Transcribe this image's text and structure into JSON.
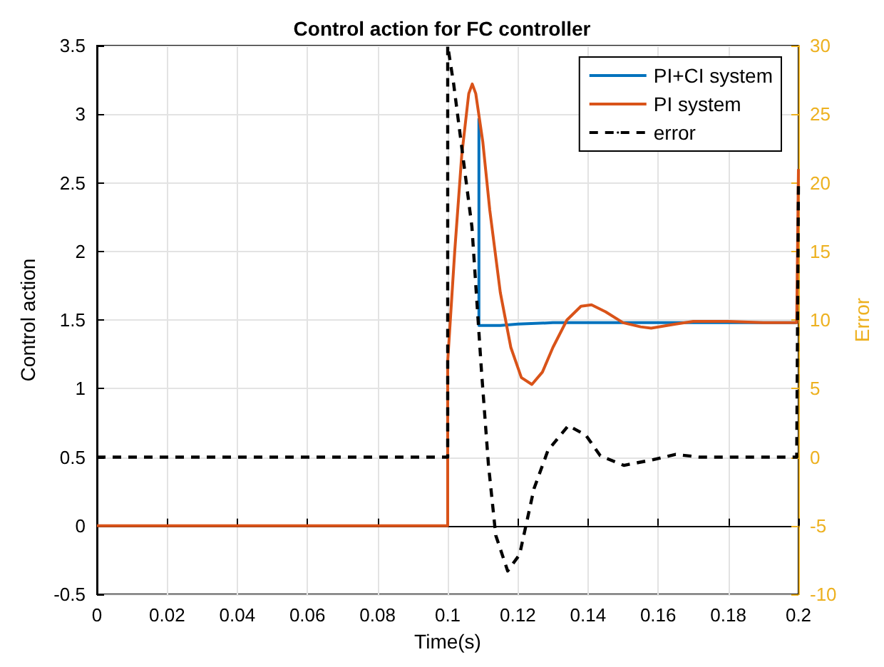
{
  "chart_data": {
    "type": "line",
    "title": "Control action for FC controller",
    "xlabel": "Time(s)",
    "ylabel": "Control action",
    "y2label": "Error",
    "xlim": [
      0,
      0.2
    ],
    "xticks": [
      0,
      0.02,
      0.04,
      0.06,
      0.08,
      0.1,
      0.12,
      0.14,
      0.16,
      0.18,
      0.2
    ],
    "ylim": [
      -0.5,
      3.5
    ],
    "yticks": [
      -0.5,
      0,
      0.5,
      1,
      1.5,
      2,
      2.5,
      3,
      3.5
    ],
    "y2lim": [
      -10,
      30
    ],
    "y2ticks": [
      -10,
      -5,
      0,
      5,
      10,
      15,
      20,
      25,
      30
    ],
    "grid": true,
    "legend": "top right",
    "marker": "none",
    "series": [
      {
        "name": "PI+CI system",
        "color": "#0072bd",
        "line_style": "solid",
        "x": [
          0.1089,
          0.1089,
          0.112,
          0.115,
          0.12,
          0.13,
          0.14,
          0.15,
          0.16,
          0.18,
          0.1995
        ],
        "values": [
          2.97,
          1.46,
          1.46,
          1.46,
          1.47,
          1.48,
          1.48,
          1.48,
          1.48,
          1.48,
          1.48
        ]
      },
      {
        "name": "PI system",
        "color": "#d95319",
        "line_style": "solid",
        "x": [
          0,
          0.1,
          0.1,
          0.102,
          0.104,
          0.106,
          0.107,
          0.108,
          0.11,
          0.112,
          0.115,
          0.118,
          0.121,
          0.124,
          0.127,
          0.13,
          0.134,
          0.138,
          0.141,
          0.145,
          0.15,
          0.155,
          0.158,
          0.165,
          0.17,
          0.18,
          0.19,
          0.1995,
          0.2
        ],
        "values": [
          0,
          0,
          1.2,
          2.0,
          2.7,
          3.15,
          3.22,
          3.15,
          2.8,
          2.3,
          1.7,
          1.3,
          1.08,
          1.03,
          1.12,
          1.3,
          1.5,
          1.6,
          1.61,
          1.56,
          1.48,
          1.45,
          1.44,
          1.47,
          1.49,
          1.49,
          1.48,
          1.48,
          2.6
        ]
      },
      {
        "name": "error",
        "color": "#000000",
        "line_style": "dashed",
        "axis": "y2",
        "x": [
          0,
          0.1,
          0.1,
          0.1017,
          0.1069,
          0.1096,
          0.1116,
          0.1137,
          0.1171,
          0.1205,
          0.1246,
          0.1286,
          0.1344,
          0.1394,
          0.1435,
          0.1502,
          0.1583,
          0.165,
          0.1718,
          0.185,
          0.1995,
          0.2
        ],
        "values": [
          0,
          0,
          30,
          27.2,
          16.8,
          6.4,
          -0.5,
          -5.7,
          -8.3,
          -7.1,
          -2.3,
          0.5,
          2.3,
          1.6,
          0.1,
          -0.6,
          -0.2,
          0.2,
          0,
          0,
          0,
          20
        ]
      }
    ]
  }
}
